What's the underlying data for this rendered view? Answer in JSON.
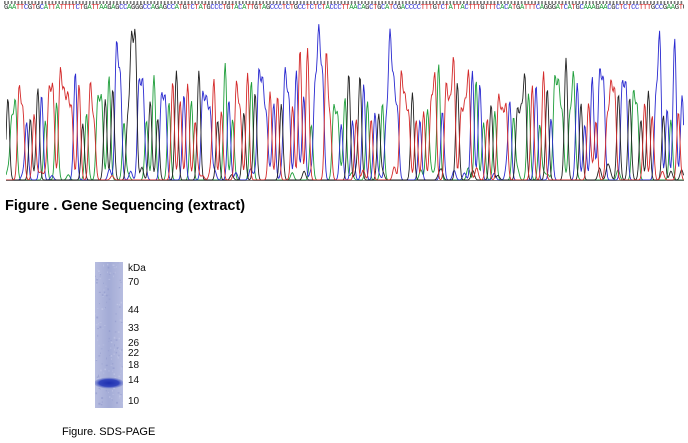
{
  "sequence_bases": "GAATTCGTGCATTATTTTCTGATTAAGAGCCAGGGCCAGAGCCATGTCTATGCCCTGTACATTGTAGCCCTCTGCCTCTCTACCCTTAACAGCTGCATCGACCCCTTTGTCTATTACTTTGTTTCACATGATTTCAGGGATCATGCAAAGAACGCTCTCCTTTGCCGAAGTGTCCGCACTC",
  "chromatogram": {
    "traces": [
      {
        "base": "A",
        "color": "#1e9e3a"
      },
      {
        "base": "C",
        "color": "#2a2ad0"
      },
      {
        "base": "G",
        "color": "#222222"
      },
      {
        "base": "T",
        "color": "#d42a2a"
      }
    ]
  },
  "figure1_caption": "Figure . Gene Sequencing (extract)",
  "gel": {
    "lane_color": "#a9b0d8",
    "band_color": "#2f3fb8",
    "unit": "kDa",
    "markers": [
      {
        "label": "70",
        "kda": 70
      },
      {
        "label": "44",
        "kda": 44
      },
      {
        "label": "33",
        "kda": 33
      },
      {
        "label": "26",
        "kda": 26
      },
      {
        "label": "22",
        "kda": 22
      },
      {
        "label": "18",
        "kda": 18
      },
      {
        "label": "14",
        "kda": 14
      },
      {
        "label": "10",
        "kda": 10
      }
    ],
    "band_kda": 14
  },
  "figure2_caption": "Figure. SDS-PAGE"
}
